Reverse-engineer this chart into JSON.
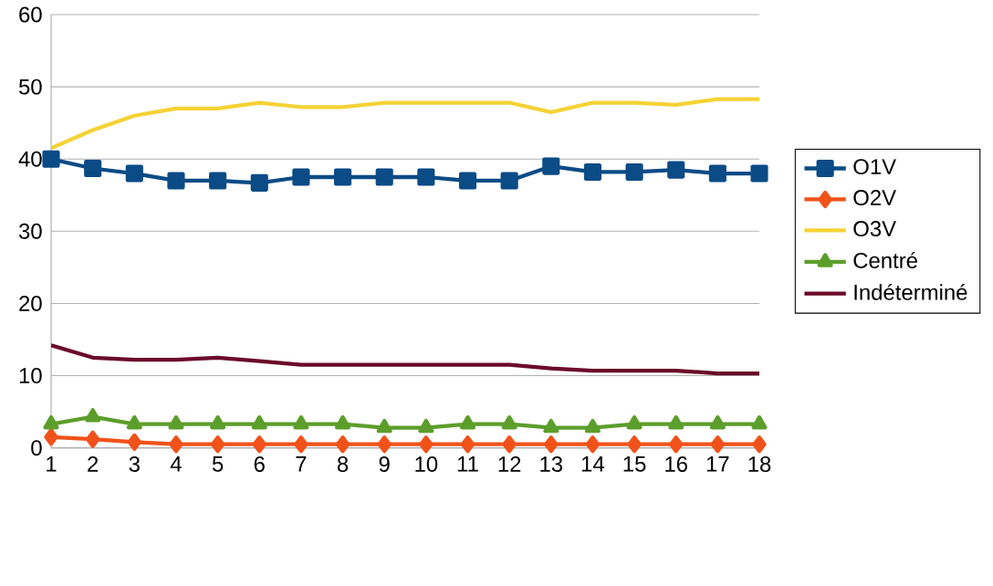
{
  "chart_data": {
    "type": "line",
    "categories": [
      "1",
      "2",
      "3",
      "4",
      "5",
      "6",
      "7",
      "8",
      "9",
      "10",
      "11",
      "12",
      "13",
      "14",
      "15",
      "16",
      "17",
      "18"
    ],
    "ylim": [
      0,
      60
    ],
    "yticks": [
      0,
      10,
      20,
      30,
      40,
      50,
      60
    ],
    "grid": "y",
    "legend": "right",
    "line_style": "solid",
    "series": [
      {
        "name": "O1V",
        "color": "#0b4b86",
        "marker": "square",
        "values": [
          40,
          38.7,
          38,
          37,
          37,
          36.7,
          37.5,
          37.5,
          37.5,
          37.5,
          37,
          37,
          39,
          38.2,
          38.2,
          38.5,
          38,
          38
        ]
      },
      {
        "name": "O2V",
        "color": "#f0521a",
        "marker": "diamond",
        "values": [
          1.5,
          1.2,
          0.8,
          0.5,
          0.5,
          0.5,
          0.5,
          0.5,
          0.5,
          0.5,
          0.5,
          0.5,
          0.5,
          0.5,
          0.5,
          0.5,
          0.5,
          0.5
        ]
      },
      {
        "name": "O3V",
        "color": "#f5d235",
        "marker": "none",
        "values": [
          41.5,
          44,
          46,
          47,
          47,
          47.8,
          47.2,
          47.2,
          47.8,
          47.8,
          47.8,
          47.8,
          46.5,
          47.8,
          47.8,
          47.5,
          48.3,
          48.3
        ]
      },
      {
        "name": "Centré",
        "color": "#5c9e2b",
        "marker": "triangle",
        "values": [
          3.3,
          4.3,
          3.3,
          3.3,
          3.3,
          3.3,
          3.3,
          3.3,
          2.8,
          2.8,
          3.3,
          3.3,
          2.8,
          2.8,
          3.3,
          3.3,
          3.3,
          3.3
        ]
      },
      {
        "name": "Indéterminé",
        "color": "#6b0a2a",
        "marker": "none",
        "values": [
          14.2,
          12.5,
          12.2,
          12.2,
          12.5,
          12,
          11.5,
          11.5,
          11.5,
          11.5,
          11.5,
          11.5,
          11,
          10.7,
          10.7,
          10.7,
          10.3,
          10.3
        ]
      }
    ]
  }
}
